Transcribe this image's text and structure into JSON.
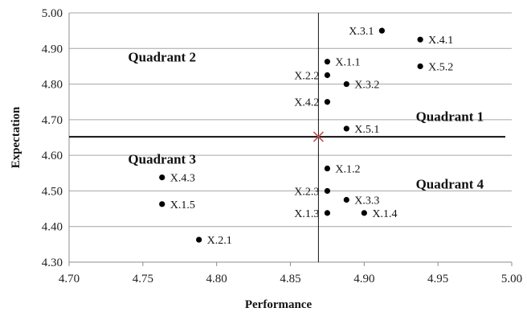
{
  "chart_data": {
    "type": "scatter",
    "xlabel": "Performance",
    "ylabel": "Expectation",
    "xlim": [
      4.7,
      5.0
    ],
    "ylim": [
      4.3,
      5.0
    ],
    "xticks": [
      "4.70",
      "4.75",
      "4.80",
      "4.85",
      "4.90",
      "4.95",
      "5.00"
    ],
    "yticks": [
      "4.30",
      "4.40",
      "4.50",
      "4.60",
      "4.70",
      "4.80",
      "4.90",
      "5.00"
    ],
    "grid": "horizontal",
    "crosshair": {
      "x": 4.869,
      "y": 4.652,
      "color": "#c0504d"
    },
    "quadrants": [
      {
        "label": "Quadrant 1",
        "x": 4.958,
        "y": 4.71
      },
      {
        "label": "Quadrant 2",
        "x": 4.763,
        "y": 4.877
      },
      {
        "label": "Quadrant 3",
        "x": 4.763,
        "y": 4.59
      },
      {
        "label": "Quadrant 4",
        "x": 4.958,
        "y": 4.52
      }
    ],
    "points": [
      {
        "label": "X.3.1",
        "x": 4.912,
        "y": 4.95,
        "side": "left"
      },
      {
        "label": "X.4.1",
        "x": 4.938,
        "y": 4.925,
        "side": "right"
      },
      {
        "label": "X.1.1",
        "x": 4.875,
        "y": 4.863,
        "side": "right"
      },
      {
        "label": "X.5.2",
        "x": 4.938,
        "y": 4.85,
        "side": "right"
      },
      {
        "label": "X.2.2",
        "x": 4.875,
        "y": 4.825,
        "side": "left"
      },
      {
        "label": "X.3.2",
        "x": 4.888,
        "y": 4.8,
        "side": "right"
      },
      {
        "label": "X.4.2",
        "x": 4.875,
        "y": 4.75,
        "side": "left"
      },
      {
        "label": "X.5.1",
        "x": 4.888,
        "y": 4.675,
        "side": "right"
      },
      {
        "label": "X.4.3",
        "x": 4.763,
        "y": 4.538,
        "side": "right"
      },
      {
        "label": "X.1.2",
        "x": 4.875,
        "y": 4.563,
        "side": "right"
      },
      {
        "label": "X.2.3",
        "x": 4.875,
        "y": 4.5,
        "side": "left"
      },
      {
        "label": "X.3.3",
        "x": 4.888,
        "y": 4.475,
        "side": "right"
      },
      {
        "label": "X.1.5",
        "x": 4.763,
        "y": 4.463,
        "side": "right"
      },
      {
        "label": "X.1.3",
        "x": 4.875,
        "y": 4.438,
        "side": "left"
      },
      {
        "label": "X.1.4",
        "x": 4.9,
        "y": 4.438,
        "side": "right"
      },
      {
        "label": "X.2.1",
        "x": 4.788,
        "y": 4.363,
        "side": "right"
      }
    ]
  }
}
